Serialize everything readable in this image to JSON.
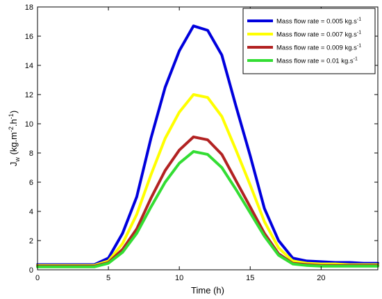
{
  "chart_data": {
    "type": "line",
    "xlabel": "Time (h)",
    "ylabel": "J_w (kg.m^-2.h^-1)",
    "ylabel_parts": {
      "main": "J",
      "sub": "w",
      "unit_open": " (kg.m",
      "exp1": "-2",
      "dot": ".h",
      "exp2": "-1",
      "close": ")"
    },
    "xlim": [
      0,
      24
    ],
    "ylim": [
      0,
      18
    ],
    "x_ticks": [
      0,
      5,
      10,
      15,
      20
    ],
    "y_ticks": [
      0,
      2,
      4,
      6,
      8,
      10,
      12,
      14,
      16,
      18
    ],
    "grid": false,
    "legend_position": "top-right",
    "x": [
      0,
      1,
      2,
      3,
      4,
      5,
      6,
      7,
      8,
      9,
      10,
      11,
      12,
      13,
      14,
      15,
      16,
      17,
      18,
      19,
      20,
      21,
      22,
      23,
      24
    ],
    "series": [
      {
        "name": "Mass flow  rate = 0.005 kg.s^-1",
        "legend_main": "Mass flow  rate = 0.005 kg.s",
        "legend_exp": "-1",
        "color": "#0000dd",
        "values": [
          0.35,
          0.35,
          0.35,
          0.35,
          0.35,
          0.8,
          2.5,
          5.0,
          9.0,
          12.5,
          15.0,
          16.7,
          16.4,
          14.7,
          11.2,
          7.8,
          4.2,
          2.0,
          0.8,
          0.6,
          0.55,
          0.5,
          0.5,
          0.45,
          0.45
        ]
      },
      {
        "name": "Mass flow  rate = 0.007 kg.s^-1",
        "legend_main": "Mass flow  rate = 0.007 kg.s",
        "legend_exp": "-1",
        "color": "#ffff00",
        "values": [
          0.3,
          0.3,
          0.3,
          0.3,
          0.3,
          0.6,
          1.8,
          3.8,
          6.5,
          9.0,
          10.8,
          12.0,
          11.8,
          10.5,
          8.2,
          5.8,
          3.3,
          1.5,
          0.6,
          0.45,
          0.4,
          0.4,
          0.35,
          0.35,
          0.35
        ]
      },
      {
        "name": "Mass flow  rate = 0.009 kg.s^-1",
        "legend_main": "Mass flow  rate = 0.009 kg.s",
        "legend_exp": "-1",
        "color": "#b22222",
        "values": [
          0.25,
          0.25,
          0.25,
          0.25,
          0.25,
          0.5,
          1.4,
          2.8,
          4.9,
          6.8,
          8.2,
          9.1,
          8.9,
          7.9,
          6.1,
          4.3,
          2.5,
          1.1,
          0.45,
          0.35,
          0.3,
          0.3,
          0.3,
          0.3,
          0.3
        ]
      },
      {
        "name": "Mass flow  rate = 0.01 kg.s^-1",
        "legend_main": "Mass flow  rate = 0.01 kg.s",
        "legend_exp": "-1",
        "color": "#33dd33",
        "values": [
          0.2,
          0.2,
          0.2,
          0.2,
          0.2,
          0.45,
          1.2,
          2.5,
          4.3,
          6.0,
          7.3,
          8.1,
          7.9,
          7.0,
          5.5,
          3.9,
          2.3,
          1.0,
          0.4,
          0.3,
          0.25,
          0.25,
          0.25,
          0.25,
          0.25
        ]
      }
    ]
  }
}
